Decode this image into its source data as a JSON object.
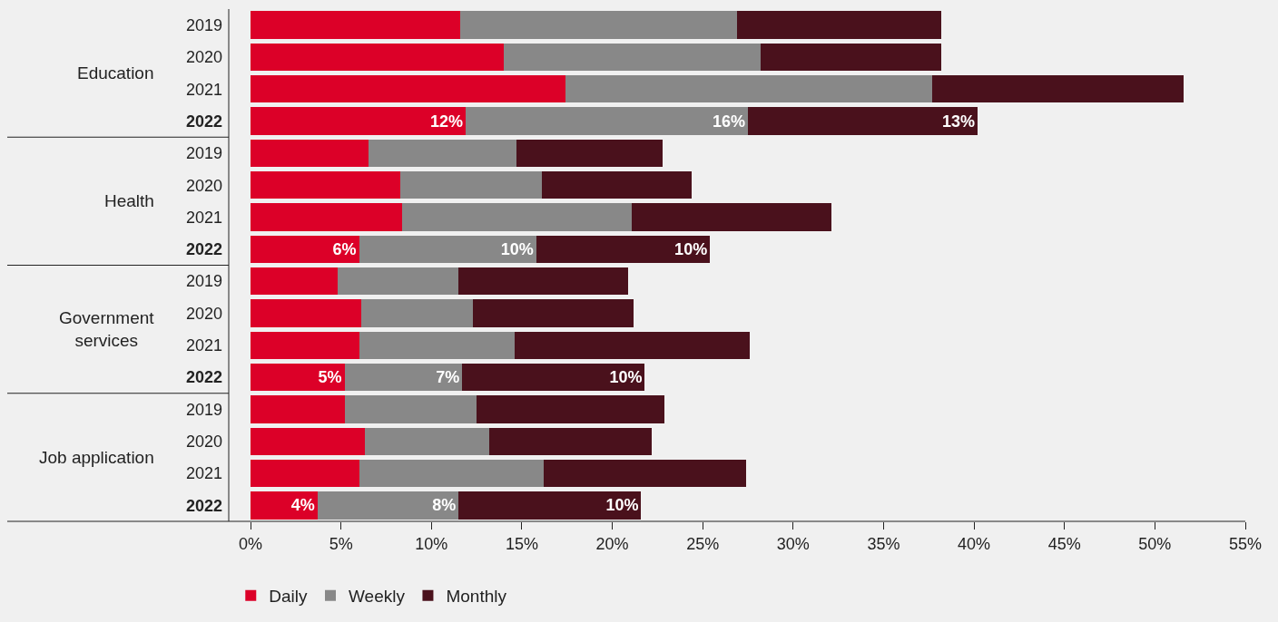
{
  "chart_data": {
    "type": "bar",
    "orientation": "horizontal",
    "stacked": true,
    "categories": [
      "2019",
      "2020",
      "2021",
      "2022",
      "2019",
      "2020",
      "2021",
      "2022",
      "2019",
      "2020",
      "2021",
      "2022",
      "2019",
      "2020",
      "2021",
      "2022"
    ],
    "annotations": [
      "Education",
      "Health",
      "Government services",
      "Job application"
    ],
    "series": [
      {
        "name": "Daily",
        "color": "#dc0028",
        "values": [
          11.6,
          14.0,
          17.4,
          11.9,
          6.5,
          8.3,
          8.4,
          6.0,
          4.8,
          6.1,
          6.0,
          5.2,
          5.2,
          6.3,
          6.0,
          3.7
        ],
        "value_labels": [
          null,
          null,
          null,
          "12%",
          null,
          null,
          null,
          "6%",
          null,
          null,
          null,
          "5%",
          null,
          null,
          null,
          "4%"
        ]
      },
      {
        "name": "Weekly",
        "color": "#888888",
        "values": [
          15.3,
          14.2,
          20.3,
          15.6,
          8.2,
          7.8,
          12.7,
          9.8,
          6.7,
          6.2,
          8.6,
          6.5,
          7.3,
          6.9,
          10.2,
          7.8
        ],
        "value_labels": [
          null,
          null,
          null,
          "16%",
          null,
          null,
          null,
          "10%",
          null,
          null,
          null,
          "7%",
          null,
          null,
          null,
          "8%"
        ]
      },
      {
        "name": "Monthly",
        "color": "#4a111c",
        "values": [
          11.3,
          10.0,
          13.9,
          12.7,
          8.1,
          8.3,
          11.0,
          9.6,
          9.4,
          8.9,
          13.0,
          10.1,
          10.4,
          9.0,
          11.2,
          10.1
        ],
        "value_labels": [
          null,
          null,
          null,
          "13%",
          null,
          null,
          null,
          "10%",
          null,
          null,
          null,
          "10%",
          null,
          null,
          null,
          "10%"
        ]
      }
    ],
    "xlim": [
      0,
      55
    ],
    "xticks": [
      {
        "value": 0,
        "label": "0%"
      },
      {
        "value": 5,
        "label": "5%"
      },
      {
        "value": 10,
        "label": "10%"
      },
      {
        "value": 15,
        "label": "15%"
      },
      {
        "value": 20,
        "label": "20%"
      },
      {
        "value": 25,
        "label": "25%"
      },
      {
        "value": 30,
        "label": "30%"
      },
      {
        "value": 35,
        "label": "35%"
      },
      {
        "value": 40,
        "label": "40%"
      },
      {
        "value": 45,
        "label": "45%"
      },
      {
        "value": 50,
        "label": "50%"
      },
      {
        "value": 55,
        "label": "55%"
      }
    ],
    "grid": false,
    "legend": "bottom left"
  }
}
